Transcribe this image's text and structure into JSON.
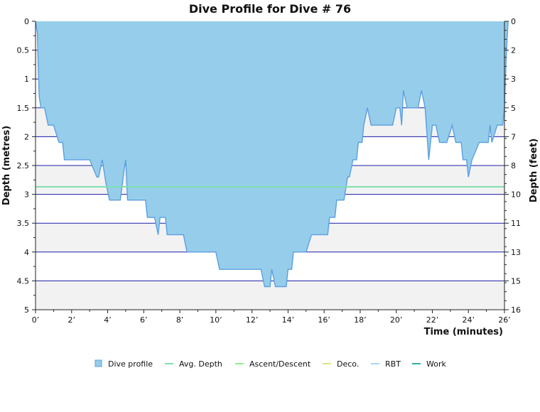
{
  "chart_data": {
    "type": "area",
    "title": "Dive Profile for Dive # 76",
    "xlabel": "Time (minutes)",
    "ylabel_left": "Depth (metres)",
    "ylabel_right": "Depth (feet)",
    "xlim": [
      0,
      26
    ],
    "ylim_left": [
      0,
      5
    ],
    "ylim_right": [
      0,
      16
    ],
    "y_inverted": true,
    "x_ticks": [
      "0’",
      "2’",
      "4’",
      "6’",
      "8’",
      "10’",
      "12’",
      "14’",
      "16’",
      "18’",
      "20’",
      "22’",
      "24’",
      "26’"
    ],
    "y_ticks_left": [
      "0",
      "0.5",
      "1",
      "1.5",
      "2",
      "2.5",
      "3",
      "3.5",
      "4",
      "4.5",
      "5"
    ],
    "y_ticks_right": [
      "0",
      "2",
      "3",
      "5",
      "7",
      "8",
      "10",
      "11",
      "13",
      "15",
      "16"
    ],
    "colors": {
      "area_fill": "#96cdea",
      "area_stroke": "#5b9fe0",
      "gridline": "#1c1ca8",
      "band": "#f2f2f2",
      "avg_depth": "#80e0b0",
      "ascent_descent": "#90ee90",
      "deco": "#d8e680",
      "rbt": "#a8d8f0",
      "work": "#30b0a0"
    },
    "avg_depth": 2.87,
    "series": [
      {
        "name": "Dive profile",
        "x": [
          0,
          0.1,
          0.2,
          0.3,
          0.5,
          0.7,
          0.8,
          1.0,
          1.3,
          1.5,
          1.6,
          1.7,
          1.8,
          3.0,
          3.4,
          3.5,
          3.7,
          3.8,
          3.9,
          4.1,
          4.3,
          4.7,
          4.9,
          5.0,
          5.1,
          5.2,
          6.1,
          6.2,
          6.6,
          6.8,
          6.9,
          7.2,
          7.3,
          8.2,
          8.4,
          10.0,
          10.2,
          12.5,
          12.7,
          13.0,
          13.1,
          13.3,
          13.6,
          13.9,
          14.0,
          14.2,
          14.3,
          15.0,
          15.3,
          16.2,
          16.3,
          16.6,
          16.7,
          17.1,
          17.3,
          17.4,
          17.6,
          17.8,
          17.9,
          18.1,
          18.2,
          18.4,
          18.6,
          18.7,
          18.8,
          19.0,
          19.8,
          20.0,
          20.2,
          20.3,
          20.4,
          20.6,
          21.2,
          21.4,
          21.6,
          21.8,
          22.0,
          22.2,
          22.4,
          22.7,
          22.8,
          23.1,
          23.3,
          23.6,
          23.7,
          23.9,
          24.0,
          24.2,
          24.6,
          25.1,
          25.2,
          25.3,
          25.6,
          25.9,
          26.0,
          26.1,
          26.2
        ],
        "depth": [
          0,
          0.2,
          1.3,
          1.5,
          1.5,
          1.8,
          1.8,
          1.8,
          2.1,
          2.1,
          2.4,
          2.4,
          2.4,
          2.4,
          2.7,
          2.7,
          2.4,
          2.6,
          2.8,
          3.1,
          3.1,
          3.1,
          2.6,
          2.4,
          3.1,
          3.1,
          3.1,
          3.4,
          3.4,
          3.7,
          3.4,
          3.4,
          3.7,
          3.7,
          4.0,
          4.0,
          4.3,
          4.3,
          4.6,
          4.6,
          4.3,
          4.6,
          4.6,
          4.6,
          4.3,
          4.3,
          4.0,
          4.0,
          3.7,
          3.7,
          3.4,
          3.4,
          3.1,
          3.1,
          2.7,
          2.7,
          2.4,
          2.4,
          2.1,
          2.1,
          1.8,
          1.5,
          1.8,
          1.8,
          1.8,
          1.8,
          1.8,
          1.5,
          1.5,
          1.8,
          1.2,
          1.5,
          1.5,
          1.2,
          1.5,
          2.4,
          1.8,
          1.8,
          2.1,
          2.1,
          2.1,
          1.8,
          2.1,
          2.1,
          2.4,
          2.4,
          2.7,
          2.4,
          2.1,
          2.1,
          1.8,
          2.1,
          1.8,
          1.8,
          1.5,
          0.6,
          0
        ]
      },
      {
        "name": "Avg. Depth"
      },
      {
        "name": "Ascent/Descent"
      },
      {
        "name": "Deco."
      },
      {
        "name": "RBT"
      },
      {
        "name": "Work"
      }
    ],
    "legend_position": "bottom"
  }
}
